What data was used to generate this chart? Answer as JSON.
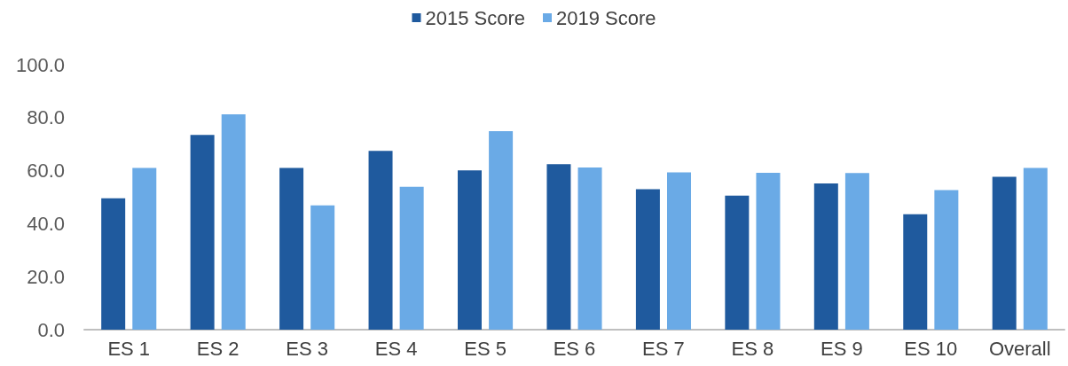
{
  "chart_data": {
    "type": "bar",
    "categories": [
      "ES 1",
      "ES 2",
      "ES 3",
      "ES 4",
      "ES 5",
      "ES 6",
      "ES 7",
      "ES 8",
      "ES 9",
      "ES 10",
      "Overall"
    ],
    "series": [
      {
        "name": "2015 Score",
        "color": "#1f5a9e",
        "values": [
          49.6,
          73.5,
          61.0,
          67.5,
          60.1,
          62.5,
          53.0,
          50.6,
          55.2,
          43.6,
          57.7
        ]
      },
      {
        "name": "2019 Score",
        "color": "#6aaae6",
        "values": [
          61.0,
          81.3,
          46.9,
          53.9,
          74.9,
          61.2,
          59.4,
          59.2,
          59.1,
          52.7,
          61.0
        ]
      }
    ],
    "ylim": [
      0,
      100
    ],
    "yticks": [
      {
        "value": 0,
        "label": "0.0"
      },
      {
        "value": 20,
        "label": "20.0"
      },
      {
        "value": 40,
        "label": "40.0"
      },
      {
        "value": 60,
        "label": "60.0"
      },
      {
        "value": 80,
        "label": "80.0"
      },
      {
        "value": 100,
        "label": "100.0"
      }
    ],
    "grid": false,
    "legend": "top"
  }
}
